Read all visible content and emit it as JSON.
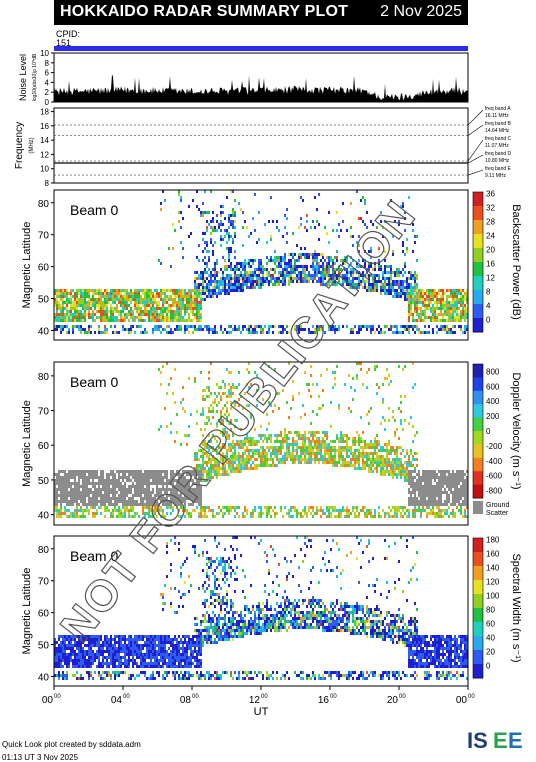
{
  "header": {
    "title": "HOKKAIDO RADAR SUMMARY PLOT",
    "date": "2 Nov 2025"
  },
  "cpid": {
    "label": "CPID:",
    "value": "151"
  },
  "footer": {
    "credit": "Quick Look plot created by sddata.adm",
    "timestamp": "01:13 UT  3 Nov 2025"
  },
  "logo": {
    "text": "ISEE"
  },
  "watermark": "NOT FOR PUBLICATION",
  "colors": {
    "cpid_bar": "#2a2af2",
    "ground_scatter": "#8c8c8c"
  },
  "chart_data": [
    {
      "type": "area",
      "ylabel": "Noise Level",
      "ylabel_sub": "log10(abs10)ρ 10^dB",
      "yticks": [
        "10",
        "8",
        "6",
        "4",
        "2",
        "0"
      ],
      "ylim": [
        0,
        10
      ],
      "x_hours": [
        0,
        2,
        4,
        6,
        8,
        10,
        12,
        14,
        16,
        18,
        18.5,
        19,
        20,
        21,
        22,
        24
      ],
      "values": [
        1.8,
        1.9,
        2.1,
        2.0,
        1.8,
        1.9,
        2.0,
        2.2,
        2.1,
        2.0,
        1.3,
        0.6,
        0.7,
        1.2,
        1.8,
        2.0
      ]
    },
    {
      "type": "line",
      "ylabel": "Frequency",
      "ylabel_sub": "(MHz)",
      "yticks": [
        "18",
        "16",
        "14",
        "12",
        "10",
        "8"
      ],
      "ylim": [
        8,
        18.5
      ],
      "bands": [
        {
          "label": "freq band A",
          "mhz_label": "16.11 MHz",
          "mhz": 16.11
        },
        {
          "label": "freq band B",
          "mhz_label": "14.64 MHz",
          "mhz": 14.64
        },
        {
          "label": "freq band C",
          "mhz_label": "11.07 MHz",
          "mhz": 11.07
        },
        {
          "label": "freq band D",
          "mhz_label": "10.80 MHz",
          "mhz": 10.8
        },
        {
          "label": "freq band E",
          "mhz_label": "9.11 MHz",
          "mhz": 9.11
        }
      ],
      "selected_mhz": 10.8
    },
    {
      "type": "heatmap",
      "beam_label": "Beam  0",
      "ylabel": "Magnetic Latitude",
      "yticks": [
        "80",
        "70",
        "60",
        "50",
        "40"
      ],
      "ylim": [
        37,
        84
      ],
      "colorbar_label": "Backscatter Power (dB)",
      "colorbar_ticks": [
        "36",
        "32",
        "28",
        "24",
        "20",
        "16",
        "12",
        "8",
        "4",
        "0"
      ]
    },
    {
      "type": "heatmap",
      "beam_label": "Beam  0",
      "ylabel": "Magnetic Latitude",
      "yticks": [
        "80",
        "70",
        "60",
        "50",
        "40"
      ],
      "ylim": [
        37,
        84
      ],
      "colorbar_label": "Doppler Velocity (m s⁻¹)",
      "colorbar_ticks": [
        "800",
        "600",
        "400",
        "200",
        "0",
        "-200",
        "-400",
        "-600",
        "-800"
      ],
      "ground_scatter_label": [
        "Ground",
        "Scatter"
      ]
    },
    {
      "type": "heatmap",
      "beam_label": "Beam  0",
      "ylabel": "Magnetic Latitude",
      "yticks": [
        "80",
        "70",
        "60",
        "50",
        "40"
      ],
      "ylim": [
        37,
        84
      ],
      "colorbar_label": "Spectral Width (m s⁻¹)",
      "colorbar_ticks": [
        "180",
        "160",
        "140",
        "120",
        "100",
        "80",
        "60",
        "40",
        "20",
        "0"
      ]
    }
  ],
  "xaxis": {
    "label": "UT",
    "ticks": [
      "00",
      "04",
      "08",
      "12",
      "16",
      "20",
      "00"
    ],
    "tick_sup": "00"
  }
}
